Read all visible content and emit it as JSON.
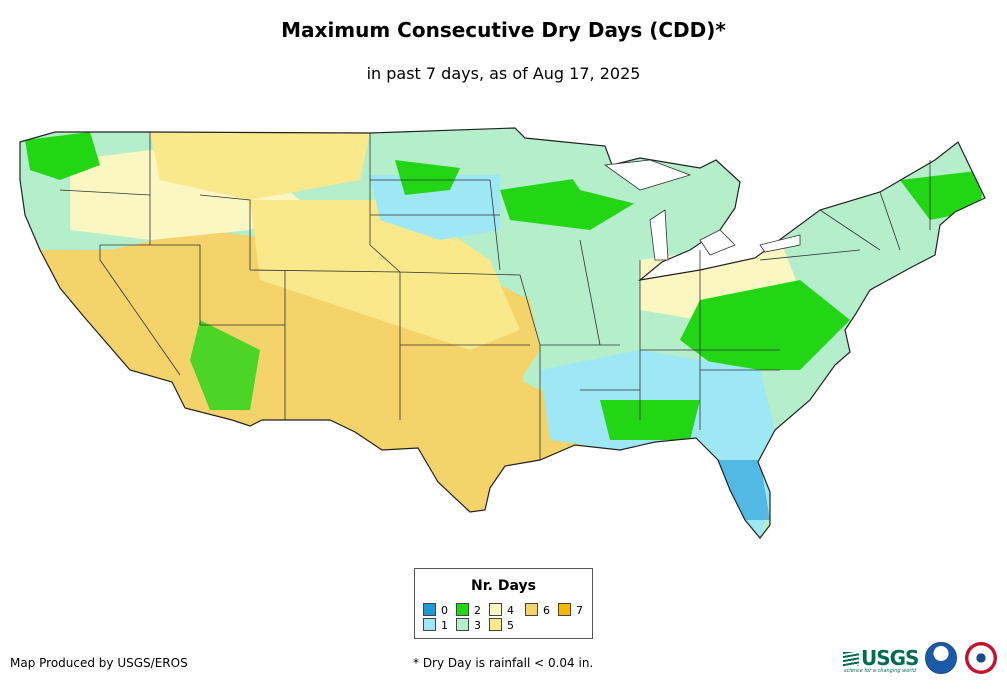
{
  "title": "Maximum Consecutive Dry Days (CDD)*",
  "subtitle": "in past 7 days, as of Aug 17, 2025",
  "legend": {
    "title": "Nr. Days",
    "items": [
      {
        "label": "0",
        "color": "#1e9bd7"
      },
      {
        "label": "1",
        "color": "#9ee7f5"
      },
      {
        "label": "2",
        "color": "#22d616"
      },
      {
        "label": "3",
        "color": "#b4eecb"
      },
      {
        "label": "4",
        "color": "#fbf7c2"
      },
      {
        "label": "5",
        "color": "#f9e98a"
      },
      {
        "label": "6",
        "color": "#f4d36a"
      },
      {
        "label": "7",
        "color": "#f8b800"
      }
    ]
  },
  "credit": "Map Produced by USGS/EROS",
  "footnote": "* Dry Day is rainfall < 0.04 in.",
  "logos": {
    "usgs": "USGS",
    "usgs_tagline": "science for a changing world",
    "noaa": "noaa-logo",
    "nws": "nws-logo"
  }
}
